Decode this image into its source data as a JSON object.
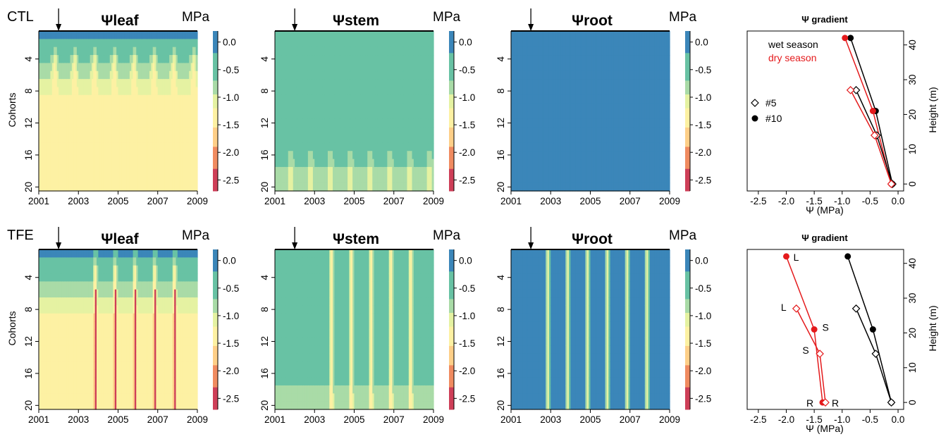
{
  "colors": {
    "scale": [
      "#3b86b9",
      "#68c2a4",
      "#a9dba7",
      "#e5f2a2",
      "#fdf1a3",
      "#fecf88",
      "#f08b60",
      "#ce3f58"
    ],
    "wet": "#000000",
    "dry": "#e41a1c"
  },
  "rows": [
    {
      "label": "CTL"
    },
    {
      "label": "TFE"
    }
  ],
  "panels": [
    {
      "title": "Ψleaf"
    },
    {
      "title": "Ψstem"
    },
    {
      "title": "Ψroot"
    }
  ],
  "colorbar": {
    "unit": "MPa",
    "ticks": [
      "0.0",
      "-0.5",
      "-1.0",
      "-1.5",
      "-2.0",
      "-2.5"
    ]
  },
  "heatmap_axes": {
    "ylabel": "Cohorts",
    "yticks": [
      "4",
      "8",
      "12",
      "16",
      "20"
    ],
    "xticks": [
      "2001",
      "2003",
      "2005",
      "2007",
      "2009"
    ]
  },
  "gradient": {
    "title": "Ψ gradient",
    "xlabel": "Ψ (MPa)",
    "ylabel": "Height (m)",
    "xticks": [
      "-2.5",
      "-2.0",
      "-1.5",
      "-1.0",
      "-0.5",
      "0.0"
    ],
    "yticks": [
      "0",
      "10",
      "20",
      "30",
      "40"
    ],
    "legend_season": {
      "wet": "wet season",
      "dry": "dry season"
    },
    "legend_tree": {
      "t5": "#5",
      "t10": "#10"
    },
    "labels": {
      "leaf": "L",
      "stem": "S",
      "root": "R"
    }
  },
  "chart_data": [
    {
      "type": "heatmap",
      "row": "CTL",
      "variable": "Ψleaf",
      "xlim": [
        2001,
        2009
      ],
      "ylim": [
        1,
        20
      ],
      "unit": "MPa",
      "color_range": [
        -2.7,
        0.2
      ],
      "annotation": "arrow at 2002.0",
      "cohort_profile_wet": [
        -0.1,
        -0.35,
        -0.5,
        -0.6,
        -0.7,
        -0.8,
        -0.95,
        -1.1,
        -1.3,
        -1.4,
        -1.4,
        -1.4,
        -1.4,
        -1.4,
        -1.4,
        -1.4,
        -1.4,
        -1.4,
        -1.4,
        -1.4
      ],
      "cohort_profile_dry": [
        -0.2,
        -0.5,
        -0.8,
        -1.1,
        -1.3,
        -1.4,
        -1.4,
        -1.4,
        -1.4,
        -1.4,
        -1.4,
        -1.4,
        -1.4,
        -1.4,
        -1.4,
        -1.4,
        -1.4,
        -1.4,
        -1.4,
        -1.4
      ]
    },
    {
      "type": "heatmap",
      "row": "CTL",
      "variable": "Ψstem",
      "xlim": [
        2001,
        2009
      ],
      "ylim": [
        1,
        20
      ],
      "unit": "MPa",
      "color_range": [
        -2.7,
        0.2
      ],
      "cohort_profile_wet": [
        -0.6,
        -0.6,
        -0.6,
        -0.6,
        -0.6,
        -0.6,
        -0.6,
        -0.6,
        -0.6,
        -0.6,
        -0.6,
        -0.6,
        -0.6,
        -0.6,
        -0.6,
        -0.6,
        -0.6,
        -0.7,
        -0.8,
        -0.8
      ],
      "cohort_profile_dry": [
        -0.6,
        -0.6,
        -0.6,
        -0.6,
        -0.6,
        -0.6,
        -0.6,
        -0.6,
        -0.6,
        -0.6,
        -0.6,
        -0.6,
        -0.6,
        -0.6,
        -0.7,
        -0.8,
        -0.9,
        -1.1,
        -1.1,
        -1.1
      ]
    },
    {
      "type": "heatmap",
      "row": "CTL",
      "variable": "Ψroot",
      "xlim": [
        2001,
        2009
      ],
      "ylim": [
        1,
        20
      ],
      "unit": "MPa",
      "color_range": [
        -2.7,
        0.2
      ],
      "cohort_profile_wet": [
        -0.1,
        -0.1,
        -0.1,
        -0.1,
        -0.1,
        -0.1,
        -0.1,
        -0.1,
        -0.1,
        -0.1,
        -0.1,
        -0.1,
        -0.1,
        -0.1,
        -0.1,
        -0.1,
        -0.1,
        -0.1,
        -0.1,
        -0.1
      ],
      "cohort_profile_dry": [
        -0.1,
        -0.1,
        -0.1,
        -0.1,
        -0.1,
        -0.1,
        -0.1,
        -0.1,
        -0.1,
        -0.1,
        -0.1,
        -0.1,
        -0.1,
        -0.1,
        -0.1,
        -0.1,
        -0.1,
        -0.1,
        -0.1,
        -0.1
      ]
    },
    {
      "type": "heatmap",
      "row": "TFE",
      "variable": "Ψleaf",
      "xlim": [
        2001,
        2009
      ],
      "ylim": [
        1,
        20
      ],
      "unit": "MPa",
      "color_range": [
        -2.7,
        0.2
      ],
      "dry_season_centres": [
        2003.85,
        2004.85,
        2005.85,
        2006.85,
        2007.85
      ],
      "cohort_profile_wet": [
        -0.1,
        -0.35,
        -0.5,
        -0.6,
        -0.7,
        -0.8,
        -0.95,
        -1.1,
        -1.3,
        -1.4,
        -1.4,
        -1.4,
        -1.4,
        -1.4,
        -1.4,
        -1.4,
        -1.4,
        -1.4,
        -1.4,
        -1.4
      ],
      "cohort_profile_dry": [
        -0.6,
        -1.0,
        -1.4,
        -1.6,
        -1.7,
        -1.8,
        -1.8,
        -1.8,
        -1.8,
        -1.8,
        -1.8,
        -1.8,
        -1.8,
        -1.8,
        -1.8,
        -1.8,
        -1.8,
        -1.8,
        -1.8,
        -1.8
      ],
      "peak_dry_value": -2.5
    },
    {
      "type": "heatmap",
      "row": "TFE",
      "variable": "Ψstem",
      "xlim": [
        2001,
        2009
      ],
      "ylim": [
        1,
        20
      ],
      "unit": "MPa",
      "color_range": [
        -2.7,
        0.2
      ],
      "dry_season_centres": [
        2003.85,
        2004.85,
        2005.85,
        2006.85,
        2007.85
      ],
      "cohort_profile_wet": [
        -0.6,
        -0.6,
        -0.6,
        -0.6,
        -0.6,
        -0.6,
        -0.6,
        -0.6,
        -0.6,
        -0.6,
        -0.6,
        -0.6,
        -0.6,
        -0.6,
        -0.6,
        -0.6,
        -0.6,
        -0.7,
        -0.8,
        -0.8
      ],
      "cohort_profile_dry": [
        -1.4,
        -1.4,
        -1.4,
        -1.4,
        -1.4,
        -1.4,
        -1.4,
        -1.4,
        -1.4,
        -1.4,
        -1.4,
        -1.4,
        -1.4,
        -1.4,
        -1.4,
        -1.4,
        -1.5,
        -1.6,
        -1.6,
        -1.6
      ]
    },
    {
      "type": "heatmap",
      "row": "TFE",
      "variable": "Ψroot",
      "xlim": [
        2001,
        2009
      ],
      "ylim": [
        1,
        20
      ],
      "unit": "MPa",
      "color_range": [
        -2.7,
        0.2
      ],
      "dry_season_centres": [
        2002.85,
        2003.85,
        2004.85,
        2005.85,
        2006.85,
        2007.85
      ],
      "cohort_profile_wet": [
        -0.1,
        -0.1,
        -0.1,
        -0.1,
        -0.1,
        -0.1,
        -0.1,
        -0.1,
        -0.1,
        -0.1,
        -0.1,
        -0.1,
        -0.1,
        -0.1,
        -0.1,
        -0.1,
        -0.1,
        -0.1,
        -0.1,
        -0.1
      ],
      "cohort_profile_dry": [
        -1.3,
        -1.3,
        -1.3,
        -1.3,
        -1.3,
        -1.3,
        -1.3,
        -1.3,
        -1.3,
        -1.3,
        -1.3,
        -1.3,
        -1.3,
        -1.3,
        -1.3,
        -1.3,
        -1.3,
        -1.3,
        -1.3,
        -1.3
      ]
    },
    {
      "type": "line",
      "row": "CTL",
      "title": "Ψ gradient",
      "xlabel": "Ψ (MPa)",
      "ylabel": "Height (m)",
      "xlim": [
        -2.7,
        0.1
      ],
      "ylim": [
        -2,
        44
      ],
      "series": [
        {
          "name": "wet season",
          "tree": "#10",
          "x": [
            -0.1,
            -0.4,
            -0.85
          ],
          "y": [
            0,
            21,
            42
          ],
          "marker": "filled"
        },
        {
          "name": "dry season",
          "tree": "#10",
          "x": [
            -0.12,
            -0.45,
            -0.95
          ],
          "y": [
            0,
            21,
            42
          ],
          "marker": "filled"
        },
        {
          "name": "wet season",
          "tree": "#5",
          "x": [
            -0.1,
            -0.38,
            -0.75
          ],
          "y": [
            0,
            14,
            27
          ],
          "marker": "open"
        },
        {
          "name": "dry season",
          "tree": "#5",
          "x": [
            -0.12,
            -0.42,
            -0.85
          ],
          "y": [
            0,
            14,
            27
          ],
          "marker": "open"
        }
      ]
    },
    {
      "type": "line",
      "row": "TFE",
      "title": "Ψ gradient",
      "xlabel": "Ψ (MPa)",
      "ylabel": "Height (m)",
      "xlim": [
        -2.7,
        0.1
      ],
      "ylim": [
        -2,
        44
      ],
      "series": [
        {
          "name": "wet season",
          "tree": "#10",
          "x": [
            -0.12,
            -0.45,
            -0.9
          ],
          "y": [
            0,
            21,
            42
          ],
          "marker": "filled"
        },
        {
          "name": "dry season",
          "tree": "#10",
          "x": [
            -1.35,
            -1.5,
            -2.0
          ],
          "y": [
            0,
            21,
            42
          ],
          "marker": "filled",
          "labels": [
            "R",
            "S",
            "L"
          ]
        },
        {
          "name": "wet season",
          "tree": "#5",
          "x": [
            -0.12,
            -0.4,
            -0.75
          ],
          "y": [
            0,
            14,
            27
          ],
          "marker": "open"
        },
        {
          "name": "dry season",
          "tree": "#5",
          "x": [
            -1.3,
            -1.4,
            -1.82
          ],
          "y": [
            0,
            14,
            27
          ],
          "marker": "open",
          "labels": [
            "R",
            "S",
            "L"
          ]
        }
      ]
    }
  ]
}
